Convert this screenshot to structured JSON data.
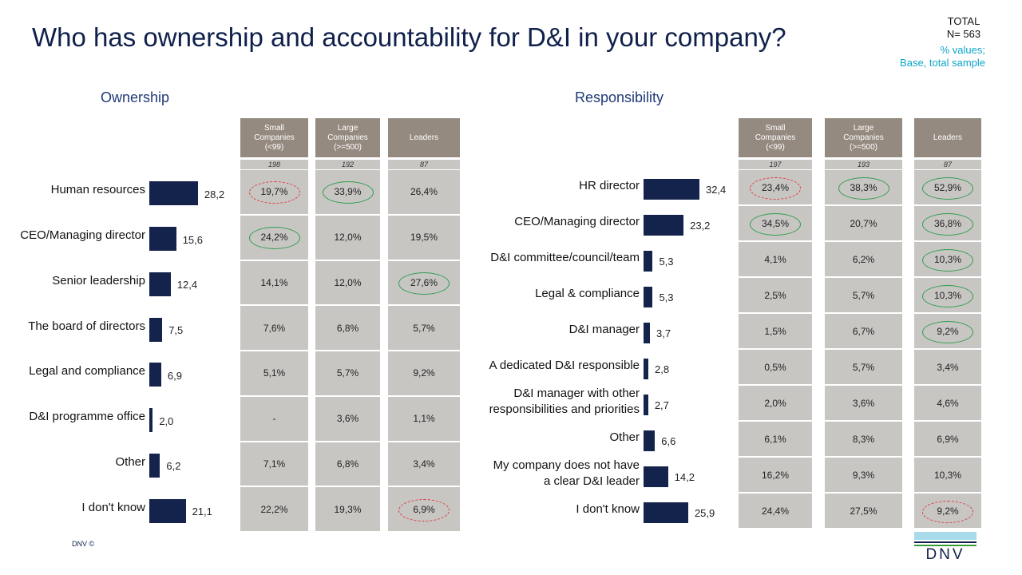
{
  "header": {
    "title": "Who has ownership and accountability for D&I in your company?",
    "total": "TOTAL",
    "n": "N= 563",
    "note_values": "% values;",
    "note_base": "Base, total sample"
  },
  "chart_data": [
    {
      "type": "bar",
      "title": "Ownership",
      "color": "#14234b",
      "categories": [
        "Human resources",
        "CEO/Managing director",
        "Senior leadership",
        "The board of directors",
        "Legal and compliance",
        "D&I programme office",
        "Other",
        "I don't know"
      ],
      "values": [
        28.2,
        15.6,
        12.4,
        7.5,
        6.9,
        2.0,
        6.2,
        21.1
      ],
      "value_labels": [
        "28,2",
        "15,6",
        "12,4",
        "7,5",
        "6,9",
        "2,0",
        "6,2",
        "21,1"
      ]
    },
    {
      "type": "bar",
      "title": "Responsibility",
      "color": "#14234b",
      "categories": [
        "HR director",
        "CEO/Managing director",
        "D&I committee/council/team",
        "Legal & compliance",
        "D&I manager",
        "A dedicated D&I responsible",
        "D&I manager with other\nresponsibilities and priorities",
        "Other",
        "My company does not have\na clear D&I leader",
        "I don't know"
      ],
      "values": [
        32.4,
        23.2,
        5.3,
        5.3,
        3.7,
        2.8,
        2.7,
        6.6,
        14.2,
        25.9
      ],
      "value_labels": [
        "32,4",
        "23,2",
        "5,3",
        "5,3",
        "3,7",
        "2,8",
        "2,7",
        "6,6",
        "14,2",
        "25,9"
      ]
    }
  ],
  "tables": [
    {
      "columns": [
        "Small\nCompanies\n(<99)",
        "Large\nCompanies\n(>=500)",
        "Leaders"
      ],
      "bases": [
        "198",
        "192",
        "87"
      ],
      "rows": [
        [
          "19,7%",
          "33,9%",
          "26,4%"
        ],
        [
          "24,2%",
          "12,0%",
          "19,5%"
        ],
        [
          "14,1%",
          "12,0%",
          "27,6%"
        ],
        [
          "7,6%",
          "6,8%",
          "5,7%"
        ],
        [
          "5,1%",
          "5,7%",
          "9,2%"
        ],
        [
          "-",
          "3,6%",
          "1,1%"
        ],
        [
          "7,1%",
          "6,8%",
          "3,4%"
        ],
        [
          "22,2%",
          "19,3%",
          "6,9%"
        ]
      ],
      "circles": [
        [
          {
            "color": "#e0393e",
            "border": "dashed"
          },
          {
            "color": "#2e9e4f",
            "border": "solid"
          },
          null
        ],
        [
          {
            "color": "#2e9e4f",
            "border": "solid"
          },
          null,
          null
        ],
        [
          null,
          null,
          {
            "color": "#2e9e4f",
            "border": "solid"
          }
        ],
        [
          null,
          null,
          null
        ],
        [
          null,
          null,
          null
        ],
        [
          null,
          null,
          null
        ],
        [
          null,
          null,
          null
        ],
        [
          null,
          null,
          {
            "color": "#e0393e",
            "border": "dashed"
          }
        ]
      ]
    },
    {
      "columns": [
        "Small\nCompanies\n(<99)",
        "Large\nCompanies\n(>=500)",
        "Leaders"
      ],
      "bases": [
        "197",
        "193",
        "87"
      ],
      "rows": [
        [
          "23,4%",
          "38,3%",
          "52,9%"
        ],
        [
          "34,5%",
          "20,7%",
          "36,8%"
        ],
        [
          "4,1%",
          "6,2%",
          "10,3%"
        ],
        [
          "2,5%",
          "5,7%",
          "10,3%"
        ],
        [
          "1,5%",
          "6,7%",
          "9,2%"
        ],
        [
          "0,5%",
          "5,7%",
          "3,4%"
        ],
        [
          "2,0%",
          "3,6%",
          "4,6%"
        ],
        [
          "6,1%",
          "8,3%",
          "6,9%"
        ],
        [
          "16,2%",
          "9,3%",
          "10,3%"
        ],
        [
          "24,4%",
          "27,5%",
          "9,2%"
        ]
      ],
      "circles": [
        [
          {
            "color": "#e0393e",
            "border": "dashed"
          },
          {
            "color": "#2e9e4f",
            "border": "solid"
          },
          {
            "color": "#2e9e4f",
            "border": "solid"
          }
        ],
        [
          {
            "color": "#2e9e4f",
            "border": "solid"
          },
          null,
          {
            "color": "#2e9e4f",
            "border": "solid"
          }
        ],
        [
          null,
          null,
          {
            "color": "#2e9e4f",
            "border": "solid"
          }
        ],
        [
          null,
          null,
          {
            "color": "#2e9e4f",
            "border": "solid"
          }
        ],
        [
          null,
          null,
          {
            "color": "#2e9e4f",
            "border": "solid"
          }
        ],
        [
          null,
          null,
          null
        ],
        [
          null,
          null,
          null
        ],
        [
          null,
          null,
          null
        ],
        [
          null,
          null,
          null
        ],
        [
          null,
          null,
          {
            "color": "#e0393e",
            "border": "dashed"
          }
        ]
      ]
    }
  ],
  "footer": {
    "copyright": "DNV ©",
    "logo": "DNV"
  }
}
